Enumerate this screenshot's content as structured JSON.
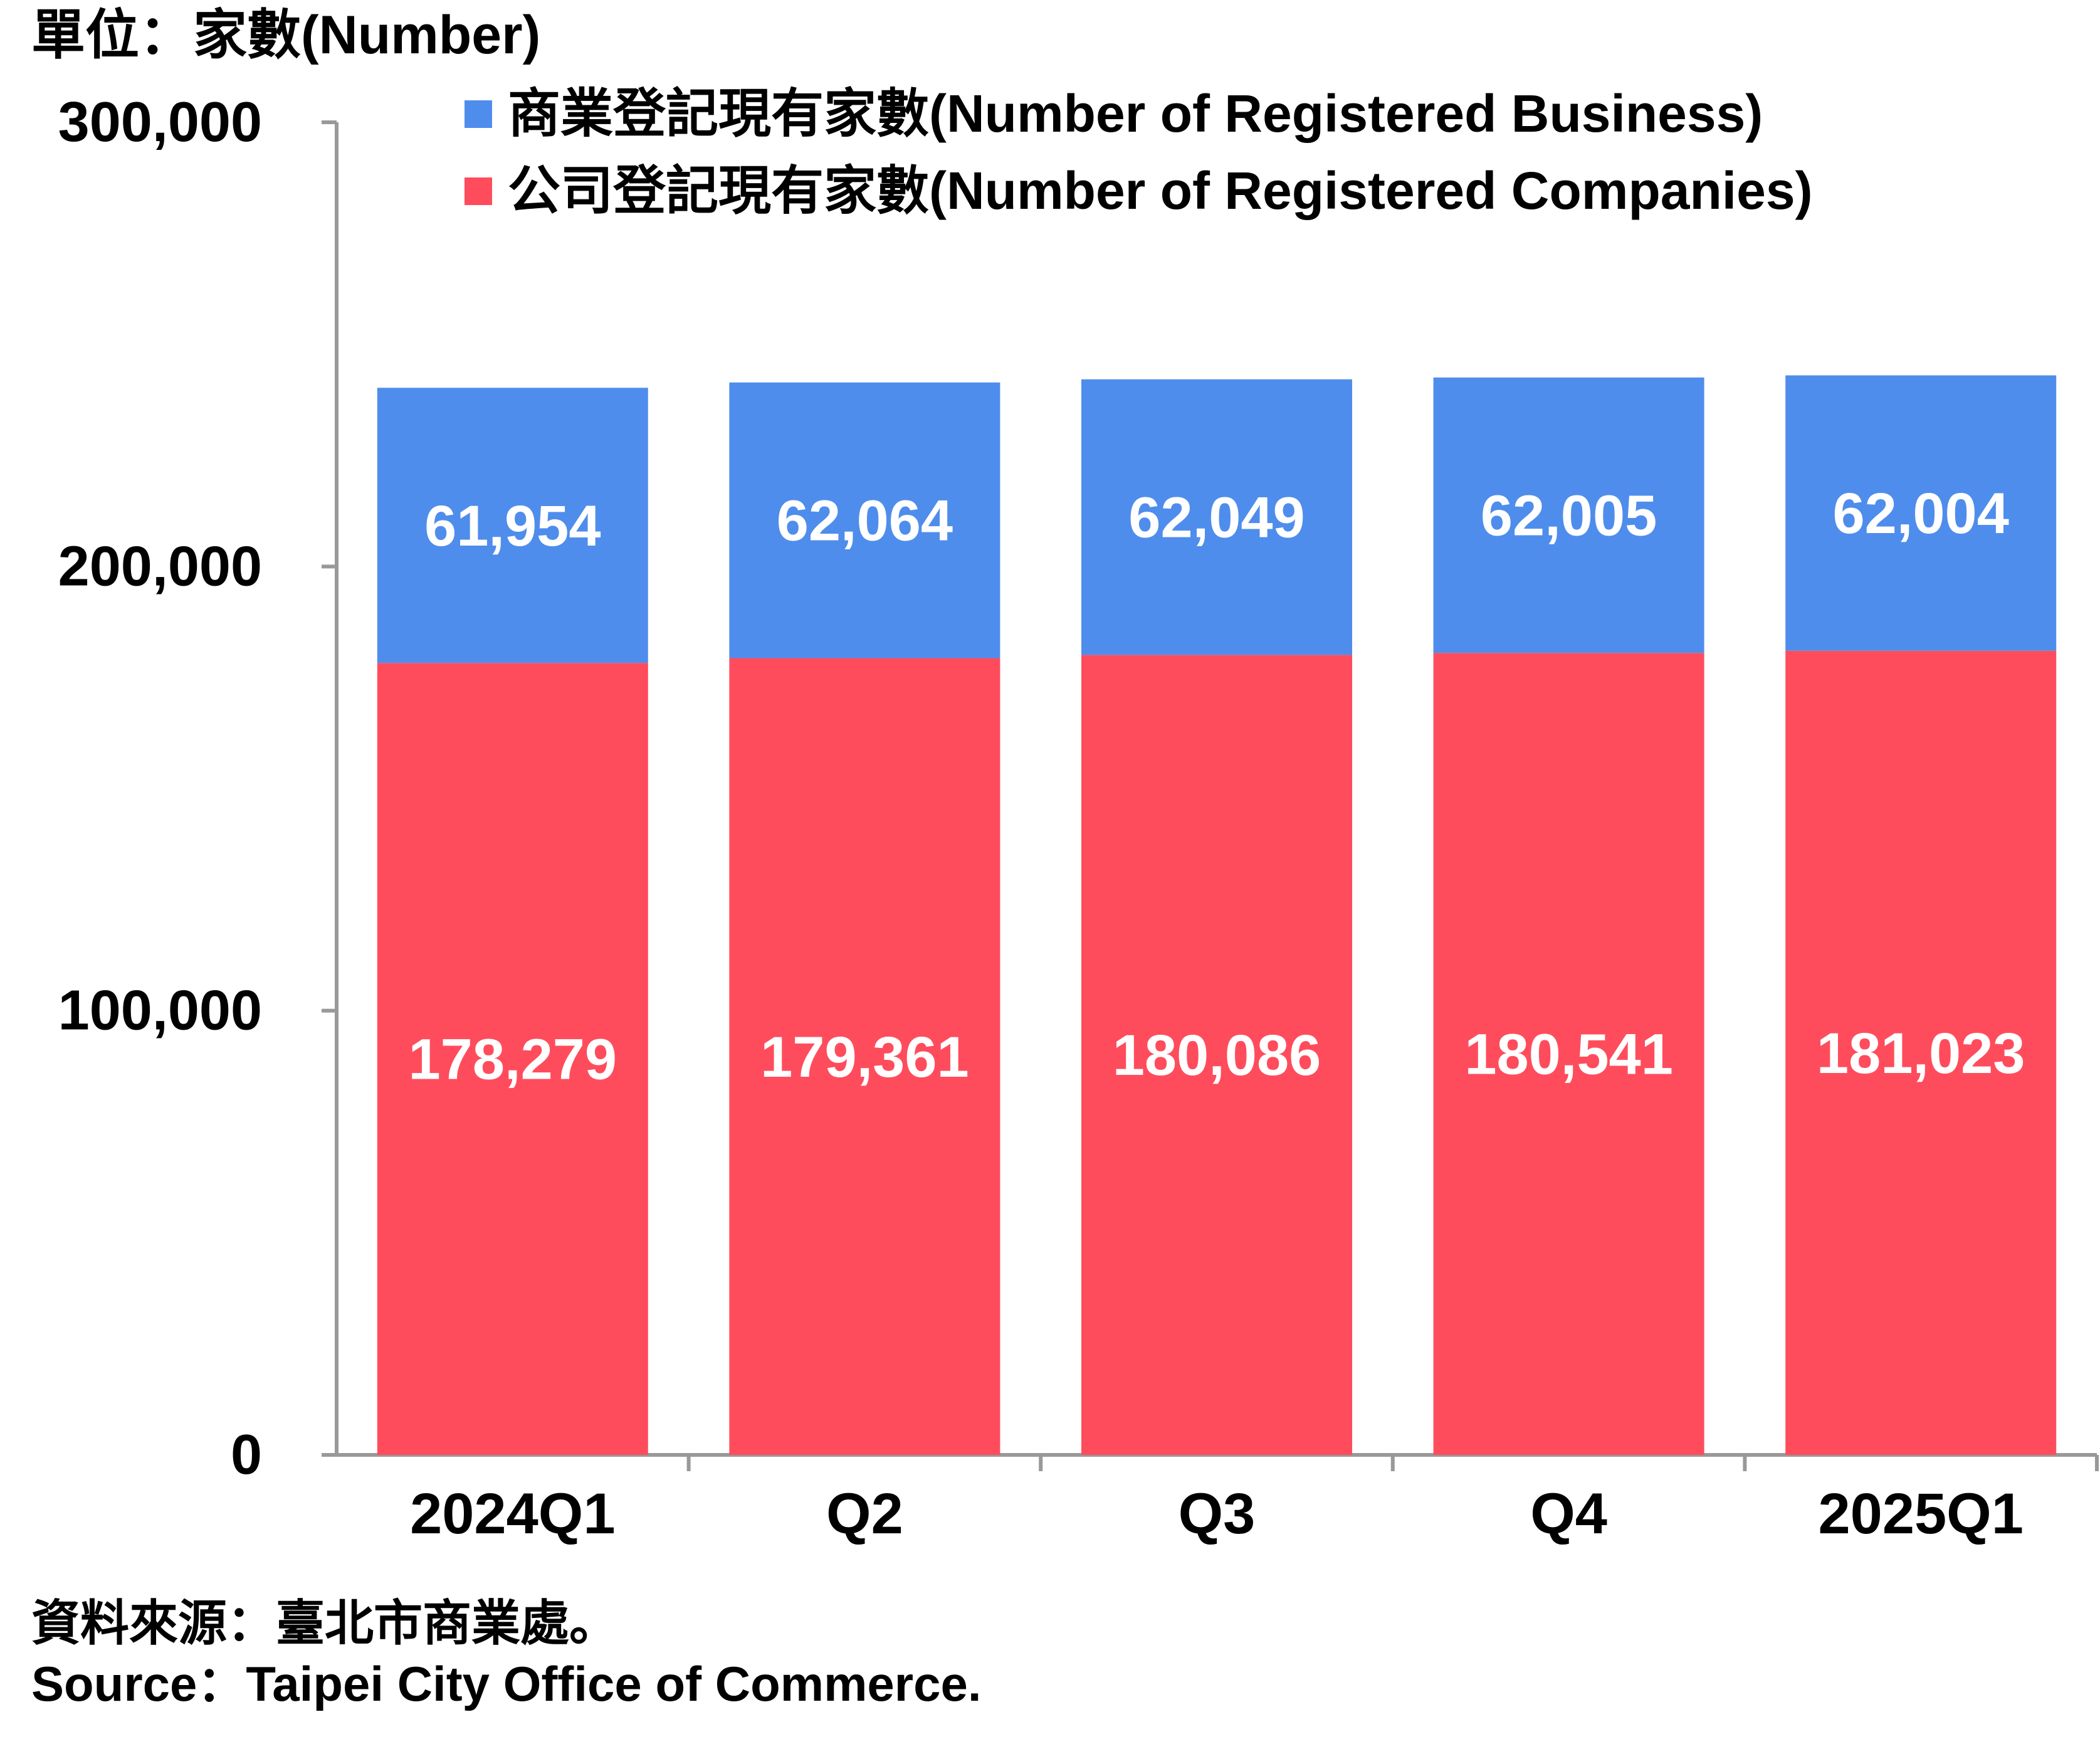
{
  "unit_label": "單位：家數(Number)",
  "source_zh": "資料來源：臺北市商業處。",
  "source_en": "Source：Taipei City Office of Commerce.",
  "colors": {
    "business": "#4F8DEC",
    "companies": "#FF4C5C",
    "axis": "#999999",
    "text": "#000000",
    "label_text": "#FFFFFF"
  },
  "chart_data": {
    "type": "bar",
    "stacked": true,
    "categories": [
      "2024Q1",
      "Q2",
      "Q3",
      "Q4",
      "2025Q1"
    ],
    "series": [
      {
        "name": "公司登記現有家數(Number of Registered Companies)",
        "color": "#FF4C5C",
        "values": [
          178279,
          179361,
          180086,
          180541,
          181023
        ],
        "labels": [
          "178,279",
          "179,361",
          "180,086",
          "180,541",
          "181,023"
        ]
      },
      {
        "name": "商業登記現有家數(Number of Registered Business)",
        "color": "#4F8DEC",
        "values": [
          61954,
          62064,
          62049,
          62005,
          62004
        ],
        "labels": [
          "61,954",
          "62,064",
          "62,049",
          "62,005",
          "62,004"
        ]
      }
    ],
    "ylim": [
      0,
      300000
    ],
    "yticks": [
      0,
      100000,
      200000,
      300000
    ],
    "ytick_labels": [
      "0",
      "100,000",
      "200,000",
      "300,000"
    ],
    "legend_position": "top",
    "legend_order": [
      1,
      0
    ],
    "grid": false
  }
}
